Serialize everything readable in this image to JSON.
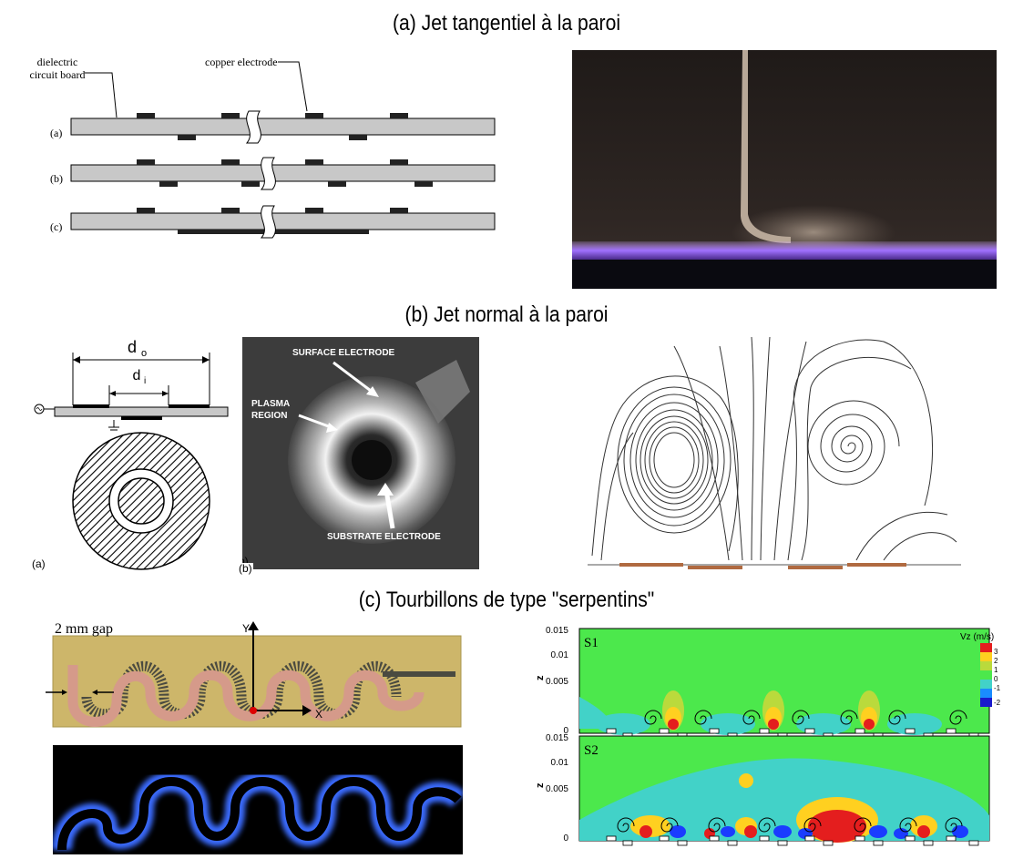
{
  "section_a": {
    "title": "(a) Jet tangentiel à la paroi",
    "diagram": {
      "label_board": [
        "dielectric",
        "circuit board"
      ],
      "label_electrode": "copper electrode",
      "row_labels": [
        "(a)",
        "(b)",
        "(c)"
      ]
    },
    "photo": {
      "colors": {
        "background": "#2a2320",
        "plasma": "#9a6cff"
      }
    }
  },
  "section_b": {
    "title": "(b) Jet normal à la paroi",
    "schematic": {
      "label_outer": "d",
      "sub_outer": "o",
      "label_inner": "d",
      "sub_inner": "i",
      "panel_label": "(a)"
    },
    "photo": {
      "label_surface": "SURFACE ELECTRODE",
      "label_plasma": [
        "PLASMA",
        "REGION"
      ],
      "label_substrate": "SUBSTRATE ELECTRODE",
      "panel_label": "(b)"
    }
  },
  "section_c": {
    "title": "(c) Tourbillons de type \"serpentins\"",
    "photo_top": {
      "gap_label": "2 mm gap",
      "axis_y": "Y",
      "axis_x": "X"
    },
    "contours": {
      "colorbar_title": "Vz (m/s)",
      "colorbar_ticks": [
        "3",
        "2",
        "1",
        "0",
        "-1",
        "-2"
      ],
      "panels": [
        {
          "label": "S1",
          "y_ticks": [
            "0.015",
            "0.01",
            "0.005",
            "0"
          ],
          "axis_label": "z"
        },
        {
          "label": "S2",
          "y_ticks": [
            "0.015",
            "0.01",
            "0.005",
            "0"
          ],
          "axis_label": "z"
        }
      ]
    }
  }
}
